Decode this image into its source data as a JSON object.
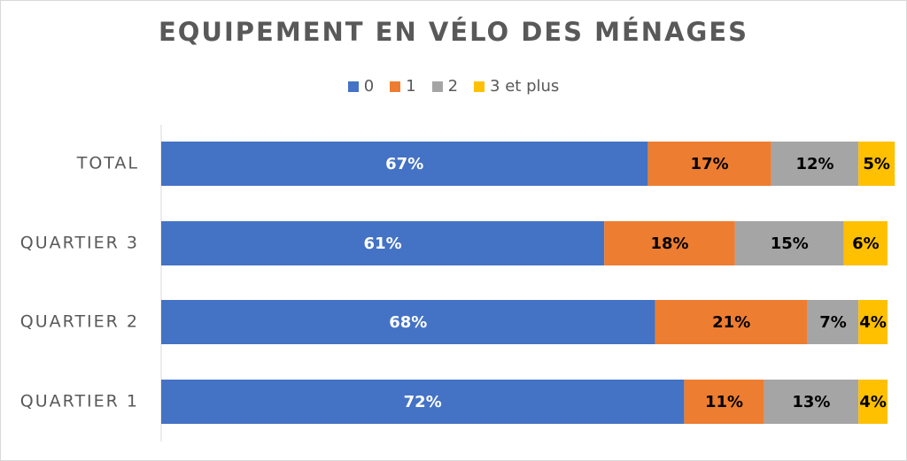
{
  "chart_data": {
    "type": "bar",
    "orientation": "horizontal",
    "stacked": "100%",
    "title": "EQUIPEMENT EN VÉLO DES MÉNAGES",
    "categories": [
      "TOTAL",
      "QUARTIER 3",
      "QUARTIER 2",
      "QUARTIER 1"
    ],
    "series": [
      {
        "name": "0",
        "color": "#4472C4",
        "label_color": "#ffffff",
        "values": [
          67,
          61,
          68,
          72
        ],
        "labels": [
          "67%",
          "61%",
          "68%",
          "72%"
        ]
      },
      {
        "name": "1",
        "color": "#ED7D31",
        "label_color": "#000000",
        "values": [
          17,
          18,
          21,
          11
        ],
        "labels": [
          "17%",
          "18%",
          "21%",
          "11%"
        ]
      },
      {
        "name": "2",
        "color": "#A5A5A5",
        "label_color": "#000000",
        "values": [
          12,
          15,
          7,
          13
        ],
        "labels": [
          "12%",
          "15%",
          "7%",
          "13%"
        ]
      },
      {
        "name": "3 et plus",
        "color": "#FFC000",
        "label_color": "#000000",
        "values": [
          5,
          6,
          4,
          4
        ],
        "labels": [
          "5%",
          "6%",
          "4%",
          "4%"
        ]
      }
    ],
    "legend_position": "top",
    "grid": false
  }
}
